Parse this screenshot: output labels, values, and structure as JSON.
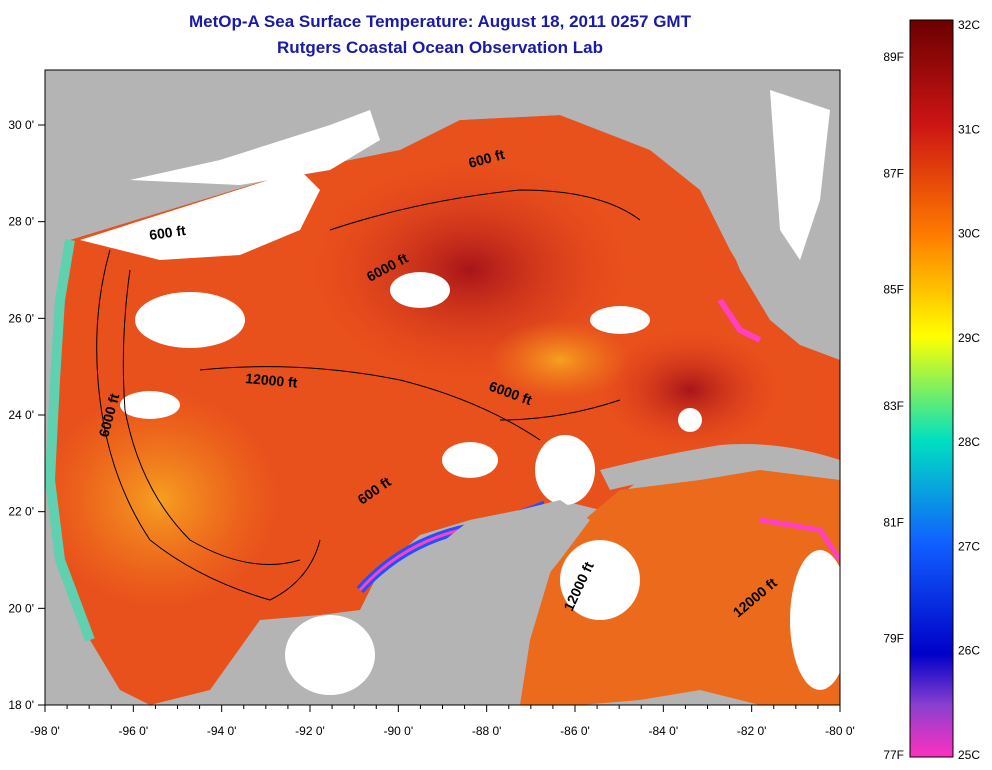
{
  "title": {
    "line1": "MetOp-A Sea Surface Temperature:  August 18, 2011 0257 GMT",
    "line2": "Rutgers Coastal Ocean Observation Lab"
  },
  "axes": {
    "x_ticks": [
      "-98 0'",
      "-96 0'",
      "-94 0'",
      "-92 0'",
      "-90 0'",
      "-88 0'",
      "-86 0'",
      "-84 0'",
      "-82 0'",
      "-80 0'"
    ],
    "y_ticks": [
      "30 0'",
      "28 0'",
      "26 0'",
      "24 0'",
      "22 0'",
      "20 0'",
      "18 0'"
    ]
  },
  "contour_labels": [
    "600 ft",
    "600 ft",
    "6000 ft",
    "12000 ft",
    "6000 ft",
    "6000 ft",
    "600 ft",
    "12000 ft",
    "12000 ft"
  ],
  "colorbar": {
    "celsius": [
      "32C",
      "31C",
      "30C",
      "29C",
      "28C",
      "27C",
      "26C",
      "25C"
    ],
    "fahrenheit": [
      "89F",
      "87F",
      "85F",
      "83F",
      "81F",
      "79F",
      "77F"
    ]
  },
  "colors": {
    "title": "#1a1aa6",
    "land_gray": "#b4b4b4",
    "cloud_white": "#ffffff",
    "sst_warm": "#e2401c",
    "sst_hot": "#a8141a",
    "sst_mid": "#f4801c"
  }
}
